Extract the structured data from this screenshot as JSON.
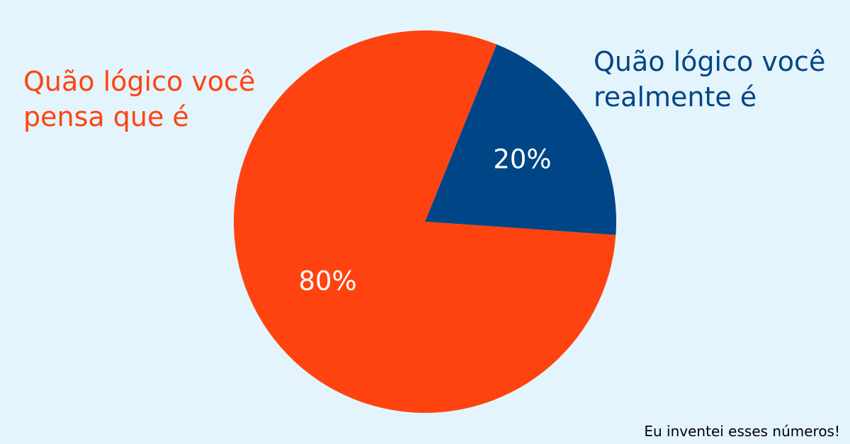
{
  "chart_data": {
    "type": "pie",
    "slices": [
      {
        "label": "Quão lógico você realmente é",
        "value": 20,
        "display": "20%",
        "color": "#004687"
      },
      {
        "label": "Quão lógico você pensa que é",
        "value": 80,
        "display": "80%",
        "color": "#ff4310"
      }
    ],
    "annotations": {
      "think": "Quão lógico você\npensa que é",
      "real": "Quão lógico você\nrealmente é"
    },
    "footnote": "Eu inventei esses números!"
  },
  "colors": {
    "background": "#e4f4fc",
    "think": "#ff4310",
    "real": "#004687"
  }
}
